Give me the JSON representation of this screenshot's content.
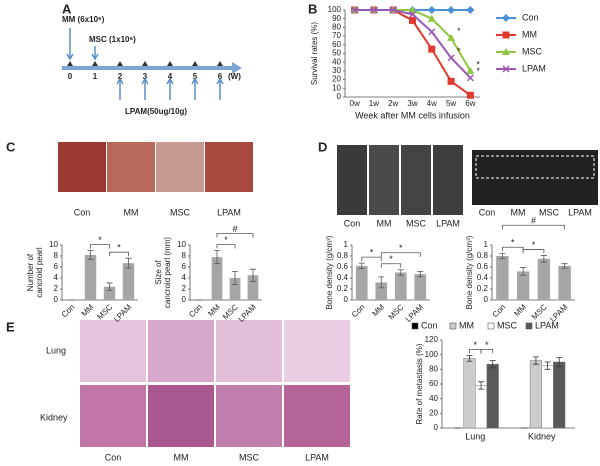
{
  "panel_labels": [
    "A",
    "B",
    "C",
    "D",
    "E"
  ],
  "timeline": {
    "mm": "MM (6x10⁶)",
    "msc": "MSC (1x10⁶)",
    "weeks": [
      0,
      1,
      2,
      3,
      4,
      5,
      6
    ],
    "unit": "(W)",
    "lpam": "LPAM(50ug/10g)"
  },
  "photo_captions": {
    "C": [
      "Con",
      "MM",
      "MSC",
      "LPAM"
    ],
    "D_left": [
      "Con",
      "MM",
      "MSC",
      "LPAM"
    ],
    "D_right": [
      "Con",
      "MM",
      "MSC",
      "LPAM"
    ],
    "E": [
      "Con",
      "MM",
      "MSC",
      "LPAM"
    ],
    "E_rows": [
      "Lung",
      "Kidney"
    ]
  },
  "chart_data": [
    {
      "type": "line",
      "y_label": "Survival rates (%)",
      "x_label": "Week after MM cells infusion",
      "categories": [
        "0w",
        "1w",
        "2w",
        "3w",
        "4w",
        "5w",
        "6w"
      ],
      "ylim": [
        0,
        100
      ],
      "yticks": [
        0,
        10,
        20,
        30,
        40,
        50,
        60,
        70,
        80,
        90,
        100
      ],
      "legend": "right",
      "series": [
        {
          "name": "Con",
          "color": "#4a90d9",
          "marker": "diamond",
          "values": [
            100,
            100,
            100,
            100,
            100,
            100,
            100
          ]
        },
        {
          "name": "MM",
          "color": "#e03a2f",
          "marker": "square",
          "values": [
            100,
            100,
            100,
            88,
            55,
            18,
            2
          ]
        },
        {
          "name": "MSC",
          "color": "#8dc63f",
          "marker": "triangle",
          "values": [
            100,
            100,
            100,
            100,
            90,
            68,
            30
          ]
        },
        {
          "name": "LPAM",
          "color": "#9b59b6",
          "marker": "x",
          "values": [
            100,
            100,
            100,
            95,
            75,
            45,
            22
          ]
        }
      ],
      "annotations": [
        {
          "label": "*",
          "x": "5w",
          "series": "MSC"
        },
        {
          "label": "*",
          "x": "5w",
          "series": "LPAM"
        },
        {
          "label": "*",
          "x": "6w",
          "series": "MSC"
        },
        {
          "label": "*",
          "x": "6w",
          "series": "LPAM"
        }
      ]
    },
    {
      "type": "bar",
      "y_label": [
        "Number of",
        "cancroid pearl"
      ],
      "categories": [
        "Con",
        "MM",
        "MSC",
        "LPAM"
      ],
      "values": [
        0,
        8.2,
        2.4,
        6.7
      ],
      "errors": [
        0,
        0.8,
        0.7,
        0.9
      ],
      "color": "#a6a6a6",
      "ylim": [
        0,
        10
      ],
      "yticks": [
        0,
        2,
        4,
        6,
        8,
        10
      ],
      "annotations": [
        {
          "label": "*",
          "between": [
            "MM",
            "MSC"
          ]
        },
        {
          "label": "*",
          "between": [
            "MSC",
            "LPAM"
          ]
        }
      ]
    },
    {
      "type": "bar",
      "y_label": [
        "Size of",
        "cancroid pearl (mm)"
      ],
      "categories": [
        "Con",
        "MM",
        "MSC",
        "LPAM"
      ],
      "values": [
        0,
        7.8,
        4.0,
        4.5
      ],
      "errors": [
        0,
        1.2,
        1.2,
        1.1
      ],
      "color": "#a6a6a6",
      "ylim": [
        0,
        10
      ],
      "yticks": [
        0,
        2,
        4,
        6,
        8,
        10
      ],
      "annotations": [
        {
          "label": "*",
          "between": [
            "MM",
            "MSC"
          ]
        },
        {
          "label": "#",
          "between": [
            "MM",
            "LPAM"
          ]
        }
      ]
    },
    {
      "type": "bar",
      "y_label": "Bone density (g/cm³)",
      "categories": [
        "Con",
        "MM",
        "MSC",
        "LPAM"
      ],
      "values": [
        0.62,
        0.32,
        0.5,
        0.47
      ],
      "errors": [
        0.05,
        0.1,
        0.05,
        0.05
      ],
      "color": "#a6a6a6",
      "ylim": [
        0,
        1
      ],
      "yticks": [
        0,
        0.2,
        0.4,
        0.6,
        0.8,
        1
      ],
      "annotations": [
        {
          "label": "*",
          "between": [
            "Con",
            "MM"
          ]
        },
        {
          "label": "*",
          "between": [
            "MM",
            "MSC"
          ]
        },
        {
          "label": "*",
          "between": [
            "MM",
            "LPAM"
          ]
        }
      ]
    },
    {
      "type": "bar",
      "y_label": "Bone density (g/cm³)",
      "categories": [
        "Con",
        "MM",
        "MSC",
        "LPAM"
      ],
      "values": [
        0.8,
        0.52,
        0.75,
        0.62
      ],
      "errors": [
        0.05,
        0.07,
        0.06,
        0.04
      ],
      "color": "#a6a6a6",
      "ylim": [
        0,
        1
      ],
      "yticks": [
        0,
        0.2,
        0.4,
        0.6,
        0.8,
        1
      ],
      "annotations": [
        {
          "label": "*",
          "between": [
            "Con",
            "MM"
          ]
        },
        {
          "label": "*",
          "between": [
            "MM",
            "MSC"
          ]
        },
        {
          "label": "#",
          "between": [
            "Con",
            "LPAM"
          ]
        }
      ]
    },
    {
      "type": "grouped_bar",
      "y_label": "Rate of metastasis (%)",
      "categories": [
        "Lung",
        "Kidney"
      ],
      "legend": "top",
      "ylim": [
        0,
        120
      ],
      "yticks": [
        0,
        20,
        40,
        60,
        80,
        100,
        120
      ],
      "series": [
        {
          "name": "Con",
          "color": "#000000",
          "values": [
            0,
            0
          ],
          "errors": [
            0,
            0
          ]
        },
        {
          "name": "MM",
          "color": "#cccccc",
          "values": [
            95,
            92
          ],
          "errors": [
            4,
            5
          ]
        },
        {
          "name": "MSC",
          "color": "#ffffff",
          "values": [
            58,
            85
          ],
          "errors": [
            5,
            5
          ]
        },
        {
          "name": "LPAM",
          "color": "#595959",
          "values": [
            87,
            90
          ],
          "errors": [
            5,
            6
          ]
        }
      ],
      "annotations": [
        {
          "label": "*",
          "category": "Lung",
          "between": [
            "MM",
            "MSC"
          ]
        },
        {
          "label": "*",
          "category": "Lung",
          "between": [
            "MSC",
            "LPAM"
          ]
        }
      ]
    }
  ]
}
